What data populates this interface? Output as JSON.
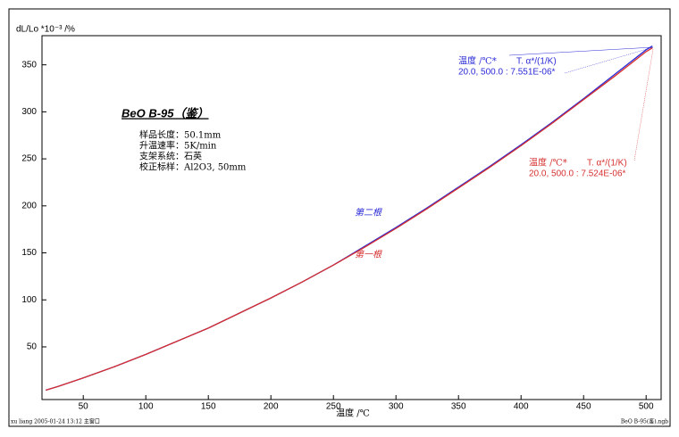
{
  "chart_data": {
    "type": "line",
    "y_label": "dL/Lo *10⁻³ /%",
    "x_label": "温度 /℃",
    "x": [
      20,
      30,
      50,
      75,
      100,
      125,
      150,
      175,
      200,
      225,
      250,
      275,
      300,
      325,
      350,
      375,
      400,
      425,
      450,
      475,
      500,
      505
    ],
    "series": [
      {
        "name": "第二根",
        "color": "#2b2bd6",
        "values": [
          4,
          8,
          17,
          29,
          42,
          56,
          70,
          86,
          102,
          119,
          137,
          157,
          177,
          198,
          220,
          242,
          265,
          289,
          314,
          340,
          366,
          370
        ]
      },
      {
        "name": "第一根",
        "color": "#d63030",
        "values": [
          4,
          8,
          17,
          29,
          42,
          56,
          70,
          86,
          102,
          119,
          137,
          156,
          176,
          197,
          219,
          241,
          264,
          288,
          313,
          338,
          364,
          368
        ]
      }
    ],
    "xlim": [
      17,
      512
    ],
    "ylim": [
      -6,
      381
    ],
    "xticks": [
      50,
      100,
      150,
      200,
      250,
      300,
      350,
      400,
      450,
      500
    ],
    "yticks": [
      50,
      100,
      150,
      200,
      250,
      300,
      350
    ],
    "sample_title": "BeO B-95（鉴）",
    "sample_info": [
      "样品长度：50.1mm",
      "升温速率：5K/min",
      "支架系统：石英",
      "校正标样：Al2O3, 50mm"
    ],
    "annotations": [
      {
        "header": [
          "温度 /℃*",
          "T. α*/(1/K)"
        ],
        "text": "20.0, 500.0 : 7.551E-06*"
      },
      {
        "header": [
          "温度 /℃*",
          "T. α*/(1/K)"
        ],
        "text": "20.0, 500.0 : 7.524E-06*"
      }
    ],
    "footer_left": "xu liang   2005-01-24 13:12   主窗口",
    "footer_right": "BeO B-95(鉴).ngb"
  }
}
